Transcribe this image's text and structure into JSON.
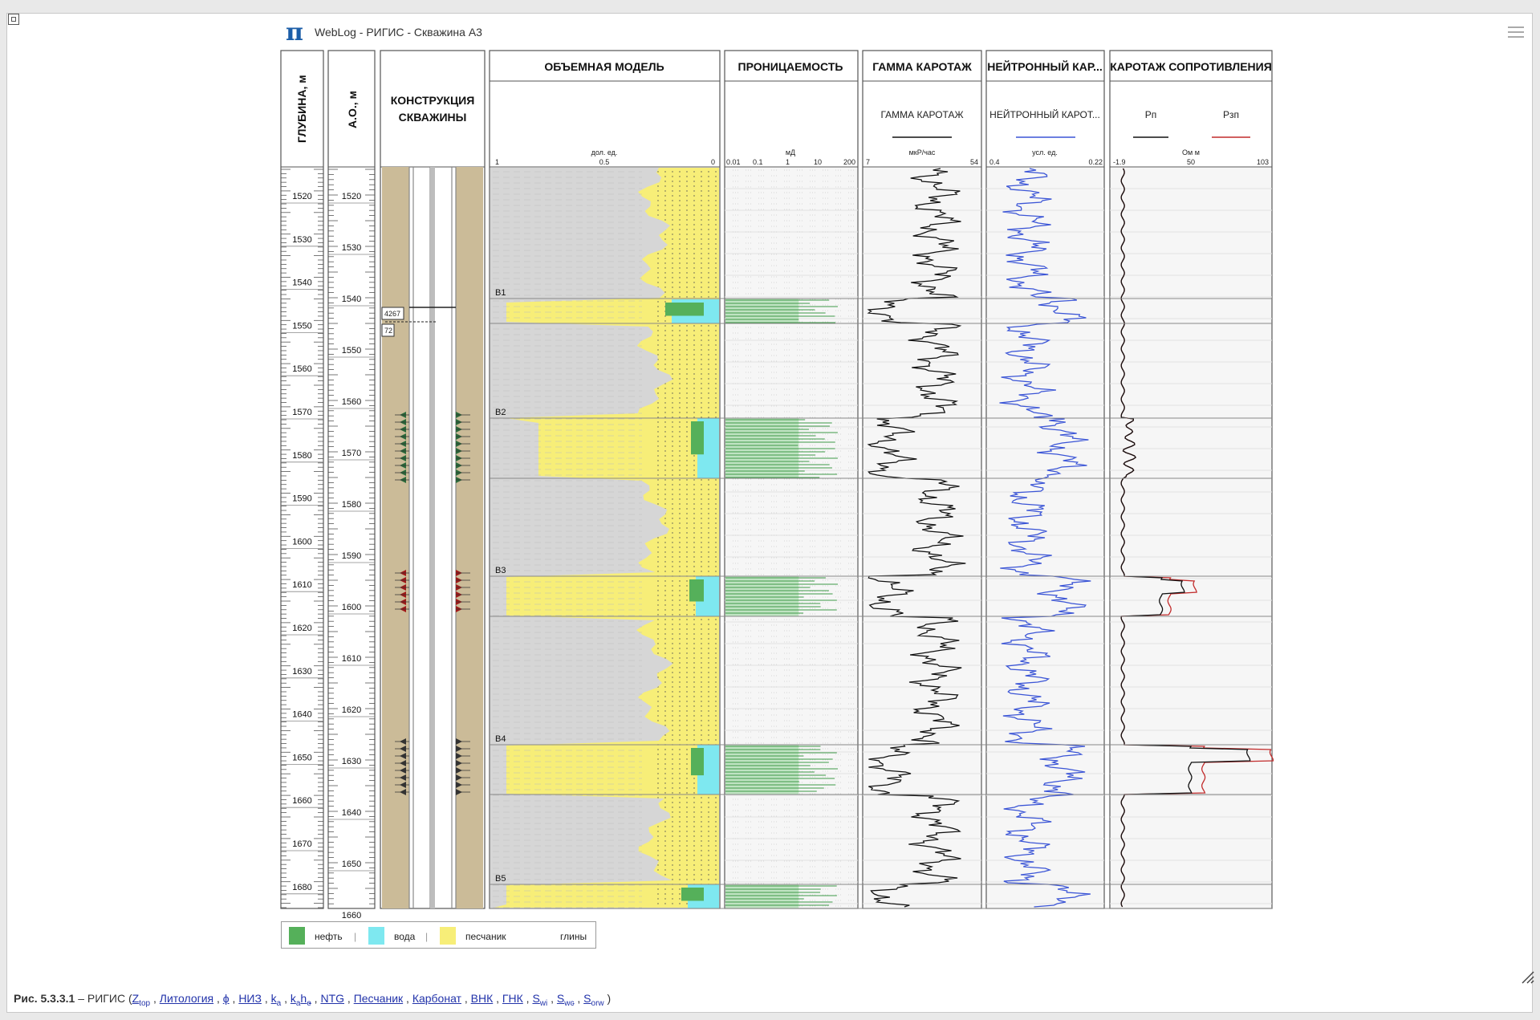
{
  "app": {
    "title": "WebLog - РИГИС - Скважина А3",
    "logo_icon": "pi-icon",
    "menu_icon": "hamburger-icon"
  },
  "tracks": {
    "depth": {
      "title": "ГЛУБИНА, м",
      "ticks": [
        "1520",
        "1530",
        "1540",
        "1550",
        "1560",
        "1570",
        "1580",
        "1590",
        "1600",
        "1610",
        "1620",
        "1630",
        "1640",
        "1650",
        "1660",
        "1670",
        "1680"
      ]
    },
    "ao": {
      "title": "А.О., м",
      "ticks": [
        "1520",
        "1530",
        "1540",
        "1550",
        "1560",
        "1570",
        "1580",
        "1590",
        "1600",
        "1610",
        "1620",
        "1630",
        "1640",
        "1650",
        "1660"
      ]
    },
    "construction": {
      "title_line1": "КОНСТРУКЦИЯ",
      "title_line2": "СКВАЖИНЫ",
      "label_a": "4267",
      "label_b": "72"
    },
    "volume": {
      "title": "ОБЪЕМНАЯ МОДЕЛЬ",
      "unit": "дол. ед.",
      "scale_left": "1",
      "scale_mid": "0.5",
      "scale_right": "0"
    },
    "perm": {
      "title": "ПРОНИЦАЕМОСТЬ",
      "unit": "мД",
      "scale": [
        "0.01",
        "0.1",
        "1",
        "10",
        "200"
      ]
    },
    "gamma": {
      "title": "ГАММА КАРОТАЖ",
      "curve": "ГАММА КАРОТАЖ",
      "unit": "мкР/час",
      "min": "7",
      "max": "54"
    },
    "neutron": {
      "title": "НЕЙТРОННЫЙ КАР...",
      "curve": "НЕЙТРОННЫЙ КАРОТ...",
      "unit": "усл. ед.",
      "min": "0.4",
      "max": "0.22"
    },
    "resist": {
      "title": "КАРОТАЖ СОПРОТИВЛЕНИЯ",
      "curve1": "Рп",
      "curve2": "Рзп",
      "unit": "Ом м",
      "min": "-1.9",
      "mid": "50",
      "max": "103"
    }
  },
  "zones": [
    "В1",
    "В2",
    "В3",
    "В4",
    "В5"
  ],
  "legend": {
    "oil": "нефть",
    "water": "вода",
    "sand": "песчаник",
    "clay": "глины"
  },
  "colors": {
    "oil": "#55b05a",
    "water": "#7ee8f0",
    "sand": "#f7ee78",
    "clay": "#d6d6d6",
    "gamma": "#111111",
    "neutron": "#3b55d6",
    "rp": "#111111",
    "rzp": "#c22c2c",
    "casing": "#cbbb98"
  },
  "caption": {
    "fig": "Рис. 5.3.3.1",
    "dash": " – РИГИС (",
    "z": "Z",
    "z_sub": "top",
    "lith": "Литология",
    "phi": "ϕ",
    "niz": "НИЗ",
    "ka": "k",
    "ka_sub": "a",
    "kh": "k",
    "kh_sub": "a",
    "kh2": "h",
    "kh2_sub": "e",
    "ntg": "NTG",
    "sand": "Песчаник",
    "carb": "Карбонат",
    "vnk": "ВНК",
    "gnk": "ГНК",
    "swi": "S",
    "swi_sub": "wi",
    "swc": "S",
    "swc_sub": "wc",
    "sorw": "S",
    "sorw_sub": "orw",
    "close": ")"
  }
}
